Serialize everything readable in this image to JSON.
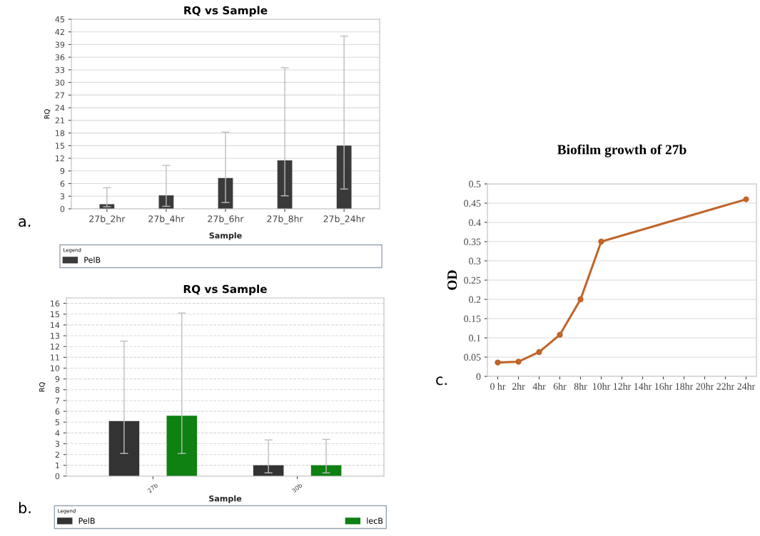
{
  "chart_data": [
    {
      "type": "bar",
      "title": "RQ vs Sample",
      "xlabel": "Sample",
      "ylabel": "RQ",
      "categories": [
        "27b_2hr",
        "27b_4hr",
        "27b_6hr",
        "27b_8hr",
        "27b_24hr"
      ],
      "series": [
        {
          "name": "PelB",
          "color": "#3a3a3a",
          "values": [
            1.1,
            3.2,
            7.3,
            11.5,
            15.0
          ],
          "errors": [
            [
              0.5,
              5.0
            ],
            [
              0.6,
              10.3
            ],
            [
              1.5,
              18.2
            ],
            [
              3.1,
              33.5
            ],
            [
              4.7,
              41.0
            ]
          ]
        }
      ],
      "ylim": [
        0,
        45
      ],
      "yticks": [
        0,
        3,
        6,
        9,
        12,
        15,
        18,
        21,
        24,
        27,
        30,
        33,
        36,
        39,
        42,
        45
      ],
      "grid": "y",
      "legend": "bottom",
      "legend_title": "Legend",
      "annotations": [
        "a."
      ]
    },
    {
      "type": "bar",
      "title": "RQ vs Sample",
      "xlabel": "Sample",
      "ylabel": "RQ",
      "categories": [
        "27b",
        "30b"
      ],
      "series": [
        {
          "name": "PelB",
          "color": "#333333",
          "values": [
            5.1,
            1.0
          ],
          "errors": [
            [
              2.1,
              12.5
            ],
            [
              0.3,
              3.35
            ]
          ]
        },
        {
          "name": "lecB",
          "color": "#0f8012",
          "values": [
            5.6,
            1.0
          ],
          "errors": [
            [
              2.1,
              15.1
            ],
            [
              0.3,
              3.4
            ]
          ]
        }
      ],
      "ylim": [
        0,
        16.5
      ],
      "yticks": [
        0,
        1,
        2,
        3,
        4,
        5,
        6,
        7,
        8,
        9,
        10,
        11,
        12,
        13,
        14,
        15,
        16
      ],
      "grid": "y",
      "line_style": "dashed",
      "legend": "bottom",
      "legend_title": "Legend",
      "annotations": [
        "b."
      ]
    },
    {
      "type": "line",
      "title": "Biofilm growth of 27b",
      "ylabel": "OD",
      "x": [
        0,
        2,
        4,
        6,
        8,
        10,
        24
      ],
      "series": [
        {
          "color": "#c0652a",
          "values": [
            0.036,
            0.038,
            0.063,
            0.108,
            0.2,
            0.35,
            0.46
          ]
        }
      ],
      "xlim": [
        -1,
        25
      ],
      "xticks": [
        {
          "value": 0,
          "label": "0 hr"
        },
        {
          "value": 2,
          "label": "2hr"
        },
        {
          "value": 4,
          "label": "4hr"
        },
        {
          "value": 6,
          "label": "6hr"
        },
        {
          "value": 8,
          "label": "8hr"
        },
        {
          "value": 10,
          "label": "10hr"
        },
        {
          "value": 12,
          "label": "12hr"
        },
        {
          "value": 14,
          "label": "14hr"
        },
        {
          "value": 16,
          "label": "16hr"
        },
        {
          "value": 18,
          "label": "18hr"
        },
        {
          "value": 20,
          "label": "20hr"
        },
        {
          "value": 22,
          "label": "22hr"
        },
        {
          "value": 24,
          "label": "24hr"
        }
      ],
      "ylim": [
        0,
        0.5
      ],
      "yticks": [
        0,
        0.05,
        0.1,
        0.15,
        0.2,
        0.25,
        0.3,
        0.35,
        0.4,
        0.45,
        0.5
      ],
      "grid": "y",
      "marker": "circle",
      "annotations": [
        "c."
      ]
    }
  ]
}
